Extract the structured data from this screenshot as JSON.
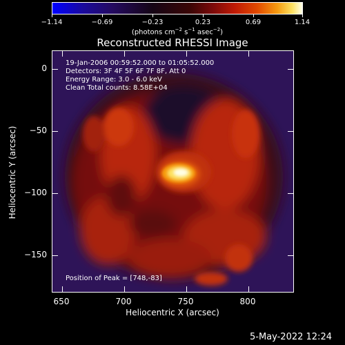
{
  "colorbar": {
    "tick_labels": [
      "−1.14",
      "−0.69",
      "−0.23",
      "0.23",
      "0.69",
      "1.14"
    ],
    "units_prefix": "(photons cm",
    "units_exp1": "−2",
    "units_mid": " s",
    "units_exp2": "−1",
    "units_mid2": " asec",
    "units_exp3": "−2",
    "units_suffix": ")",
    "colors": [
      "#0000ff",
      "#240a60",
      "#150515",
      "#7a0a0a",
      "#e24a00",
      "#ffffe8"
    ]
  },
  "plot": {
    "title": "Reconstructed RHESSI Image",
    "info_lines": [
      "19-Jan-2006 00:59:52.000 to 01:05:52.000",
      "Detectors: 3F 4F 5F 6F 7F 8F, Att 0",
      "Energy Range: 3.0 - 6.0 keV",
      "Clean    Total counts: 8.58E+04"
    ],
    "peak_text": "Position of Peak = [748,-83]",
    "xlabel": "Heliocentric X (arcsec)",
    "ylabel": "Heliocentric Y (arcsec)",
    "x_ticks": [
      "650",
      "700",
      "750",
      "800"
    ],
    "y_ticks": [
      "0",
      "−50",
      "−100",
      "−150"
    ]
  },
  "footer": {
    "timestamp": "5-May-2022 12:24"
  }
}
